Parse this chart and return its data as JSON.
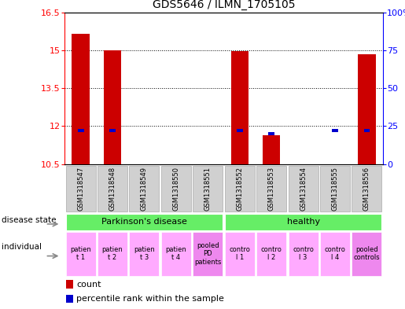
{
  "title": "GDS5646 / ILMN_1705105",
  "samples": [
    "GSM1318547",
    "GSM1318548",
    "GSM1318549",
    "GSM1318550",
    "GSM1318551",
    "GSM1318552",
    "GSM1318553",
    "GSM1318554",
    "GSM1318555",
    "GSM1318556"
  ],
  "count_values": [
    15.65,
    15.0,
    10.5,
    10.5,
    10.5,
    14.97,
    11.65,
    10.5,
    10.5,
    14.85
  ],
  "percentile_values": [
    22,
    22,
    null,
    null,
    null,
    22,
    20,
    null,
    22,
    22
  ],
  "ylim_left": [
    10.5,
    16.5
  ],
  "ylim_right": [
    0,
    100
  ],
  "yticks_left": [
    10.5,
    12.0,
    13.5,
    15.0,
    16.5
  ],
  "yticks_right": [
    0,
    25,
    50,
    75,
    100
  ],
  "ytick_labels_left": [
    "10.5",
    "12",
    "13.5",
    "15",
    "16.5"
  ],
  "ytick_labels_right": [
    "0",
    "25",
    "50",
    "75",
    "100%"
  ],
  "bar_color": "#cc0000",
  "percentile_color": "#0000cc",
  "bar_width": 0.55,
  "individual_groups": [
    {
      "label": "patien\nt 1",
      "x": 0,
      "color": "#ffaaff"
    },
    {
      "label": "patien\nt 2",
      "x": 1,
      "color": "#ffaaff"
    },
    {
      "label": "patien\nt 3",
      "x": 2,
      "color": "#ffaaff"
    },
    {
      "label": "patien\nt 4",
      "x": 3,
      "color": "#ffaaff"
    },
    {
      "label": "pooled\nPD\npatients",
      "x": 4,
      "color": "#ee88ee"
    },
    {
      "label": "contro\nl 1",
      "x": 5,
      "color": "#ffaaff"
    },
    {
      "label": "contro\nl 2",
      "x": 6,
      "color": "#ffaaff"
    },
    {
      "label": "contro\nl 3",
      "x": 7,
      "color": "#ffaaff"
    },
    {
      "label": "contro\nl 4",
      "x": 8,
      "color": "#ffaaff"
    },
    {
      "label": "pooled\ncontrols",
      "x": 9,
      "color": "#ee88ee"
    }
  ],
  "sample_bg_color": "#d0d0d0",
  "sample_border_color": "#aaaaaa",
  "left_label_disease": "disease state",
  "left_label_individual": "individual",
  "legend_count_color": "#cc0000",
  "legend_percentile_color": "#0000cc",
  "green_color": "#66ee66",
  "arrow_color": "#888888"
}
